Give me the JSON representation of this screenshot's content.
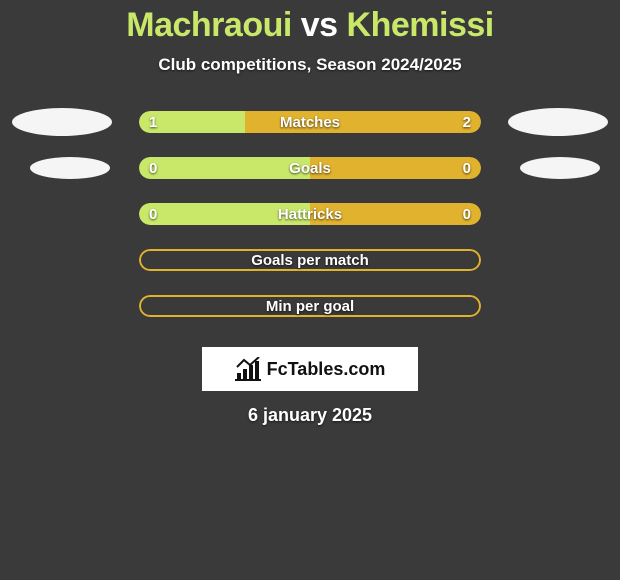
{
  "colors": {
    "background": "#3a3a3a",
    "green": "#c9e86a",
    "yellow": "#e0b22e",
    "white": "#ffffff",
    "avatar": "#f5f5f5"
  },
  "title": {
    "player1": "Machraoui",
    "vs": "vs",
    "player2": "Khemissi"
  },
  "subtitle": "Club competitions, Season 2024/2025",
  "stats": [
    {
      "label": "Matches",
      "left_value": "1",
      "right_value": "2",
      "left_pct": 31,
      "right_pct": 69,
      "left_color": "#c9e86a",
      "right_color": "#e0b22e",
      "border_color": null,
      "show_avatar": "large"
    },
    {
      "label": "Goals",
      "left_value": "0",
      "right_value": "0",
      "left_pct": 50,
      "right_pct": 50,
      "left_color": "#c9e86a",
      "right_color": "#e0b22e",
      "border_color": null,
      "show_avatar": "small"
    },
    {
      "label": "Hattricks",
      "left_value": "0",
      "right_value": "0",
      "left_pct": 50,
      "right_pct": 50,
      "left_color": "#c9e86a",
      "right_color": "#e0b22e",
      "border_color": null,
      "show_avatar": null
    },
    {
      "label": "Goals per match",
      "left_value": "",
      "right_value": "",
      "left_pct": 0,
      "right_pct": 0,
      "left_color": null,
      "right_color": null,
      "border_color": "#e0b22e",
      "show_avatar": null
    },
    {
      "label": "Min per goal",
      "left_value": "",
      "right_value": "",
      "left_pct": 0,
      "right_pct": 0,
      "left_color": null,
      "right_color": null,
      "border_color": "#e0b22e",
      "show_avatar": null
    }
  ],
  "logo_text": "FcTables.com",
  "date": "6 january 2025"
}
